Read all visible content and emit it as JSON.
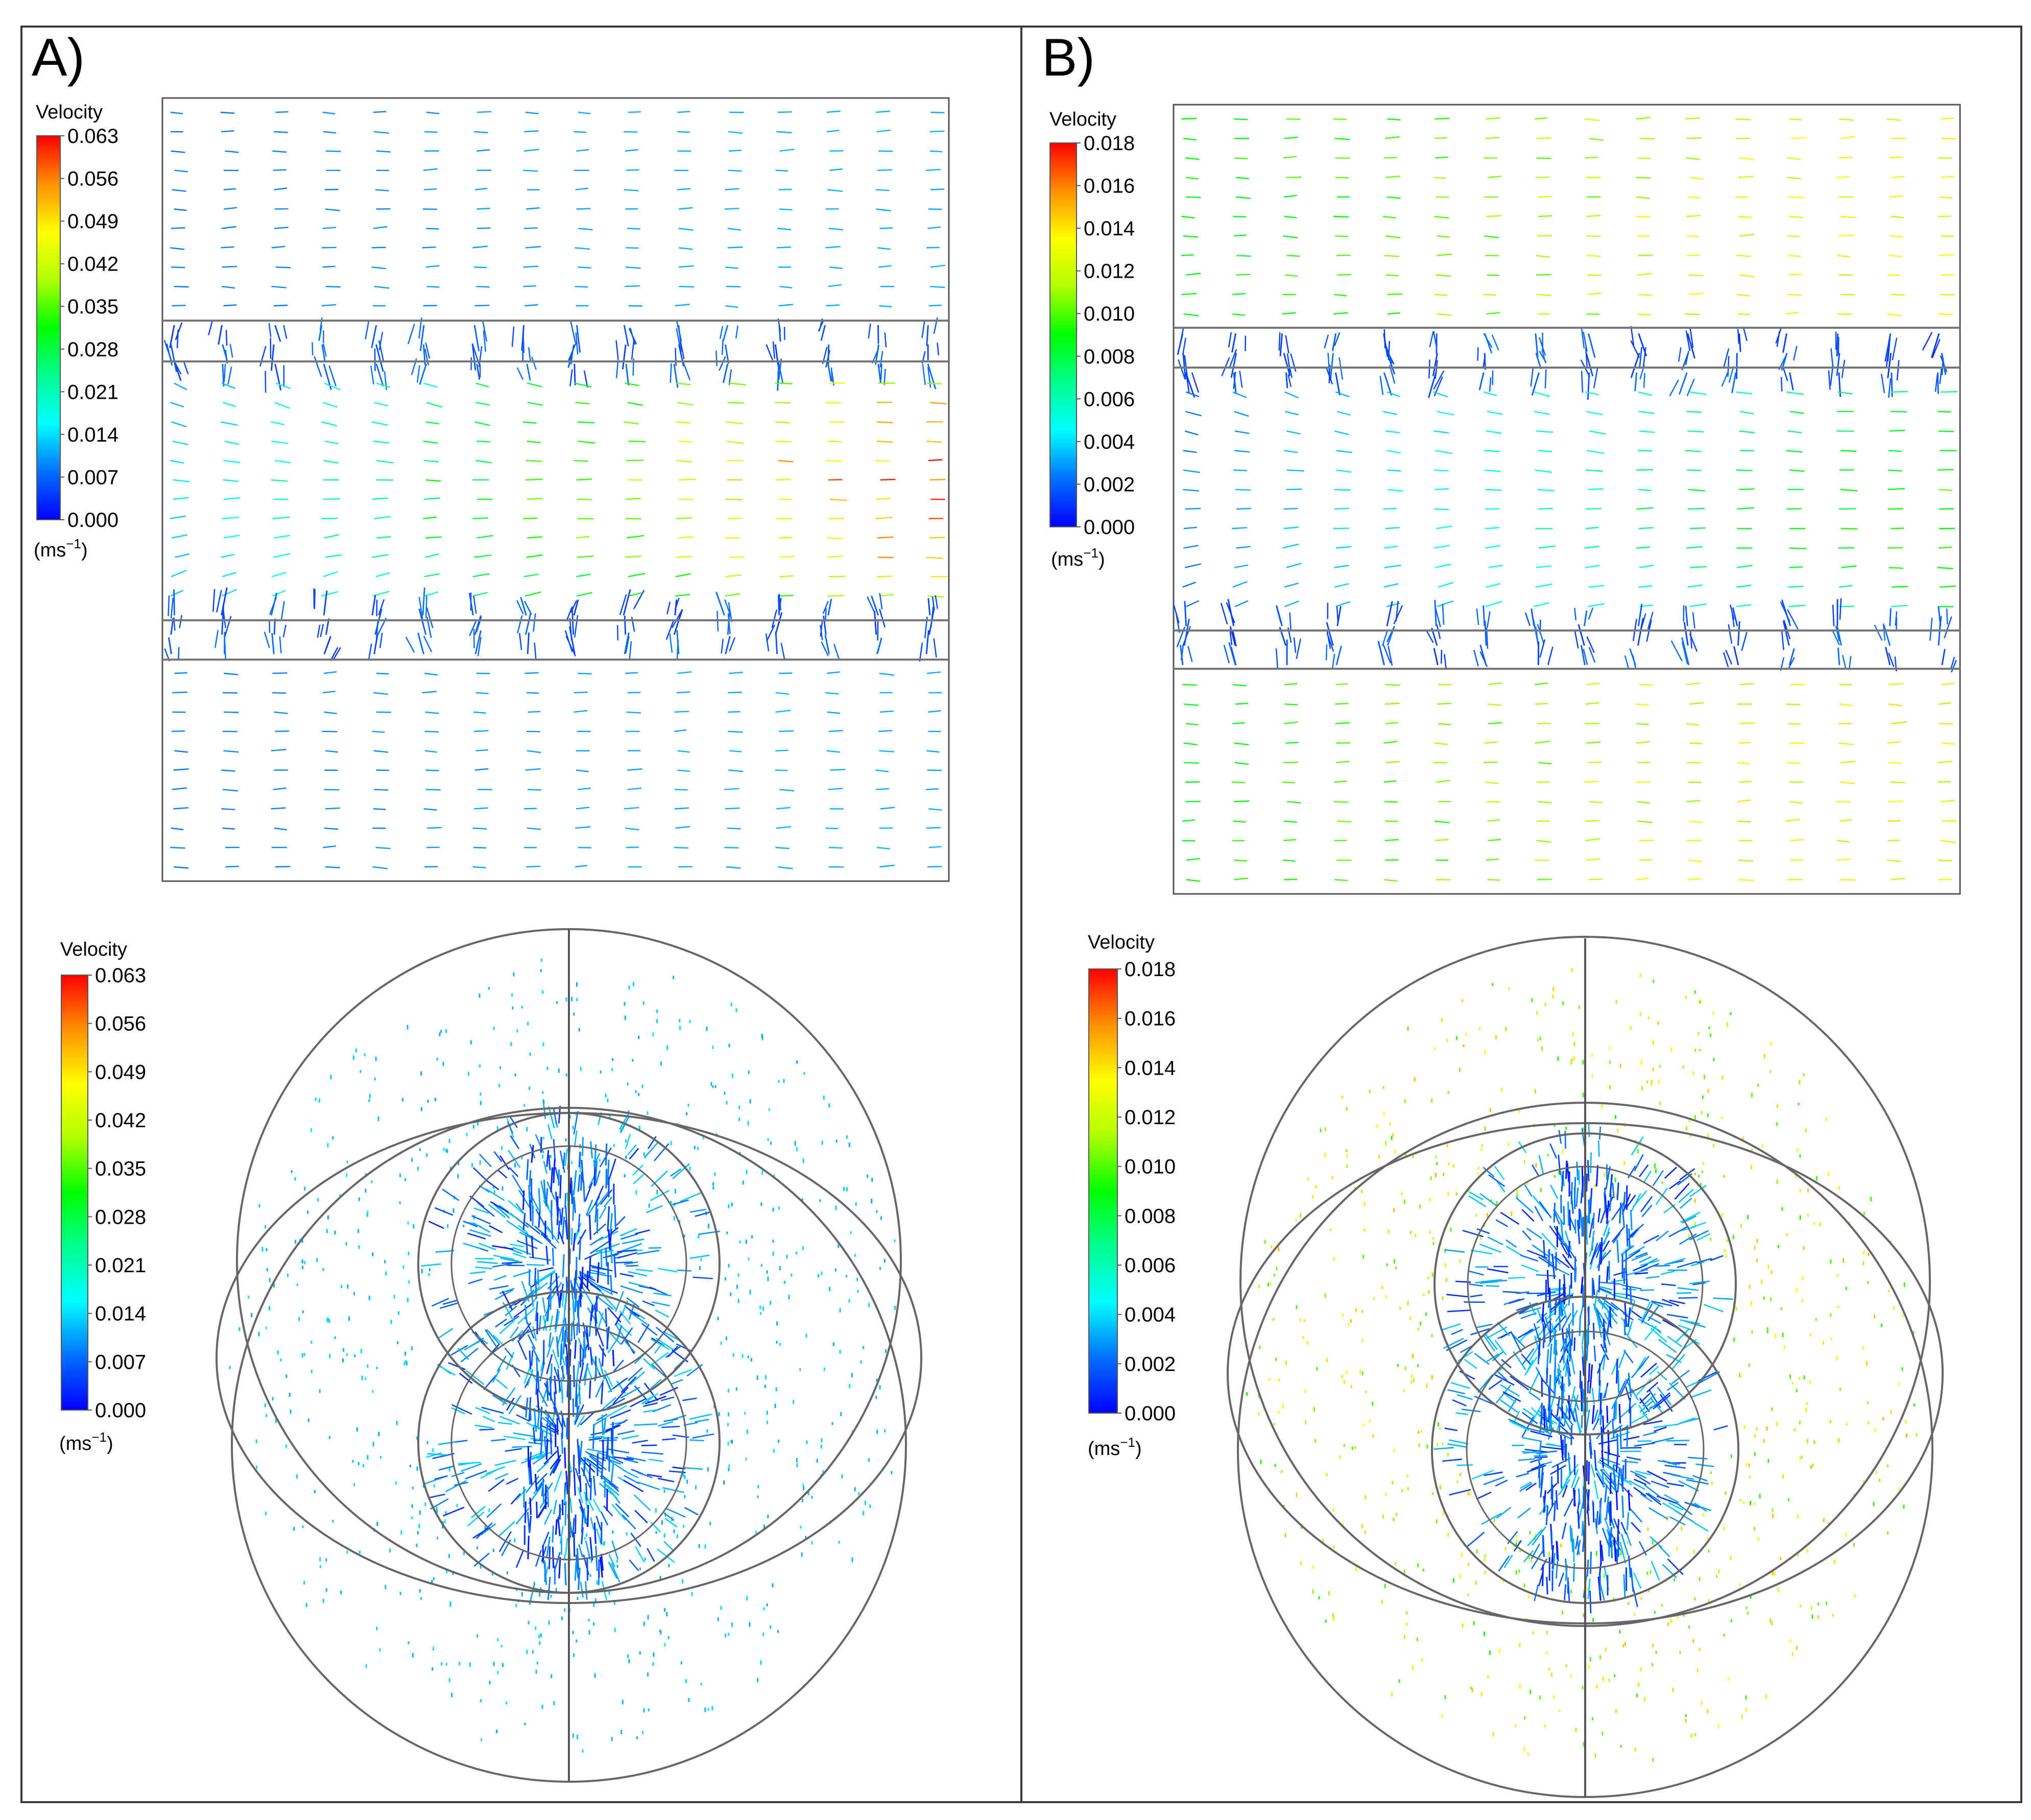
{
  "panels": [
    {
      "label": "A)",
      "legend_title": "Velocity",
      "unit": "(ms",
      "unit_exp": "−1",
      "unit_close": ")",
      "ticks": [
        "0.063",
        "0.056",
        "0.049",
        "0.042",
        "0.035",
        "0.028",
        "0.021",
        "0.014",
        "0.007",
        "0.000"
      ],
      "vmax": 0.063
    },
    {
      "label": "B)",
      "legend_title": "Velocity",
      "unit": "(ms",
      "unit_exp": "−1",
      "unit_close": ")",
      "ticks": [
        "0.018",
        "0.016",
        "0.014",
        "0.012",
        "0.010",
        "0.008",
        "0.006",
        "0.004",
        "0.002",
        "0.000"
      ],
      "vmax": 0.018
    }
  ],
  "colors": {
    "border": "#3c3c3c",
    "geometry": "#777777",
    "colormap": [
      "#0000ff",
      "#00a0ff",
      "#00ffff",
      "#00ff80",
      "#00ff00",
      "#a0ff00",
      "#ffff00",
      "#ffa000",
      "#ff0000"
    ]
  }
}
